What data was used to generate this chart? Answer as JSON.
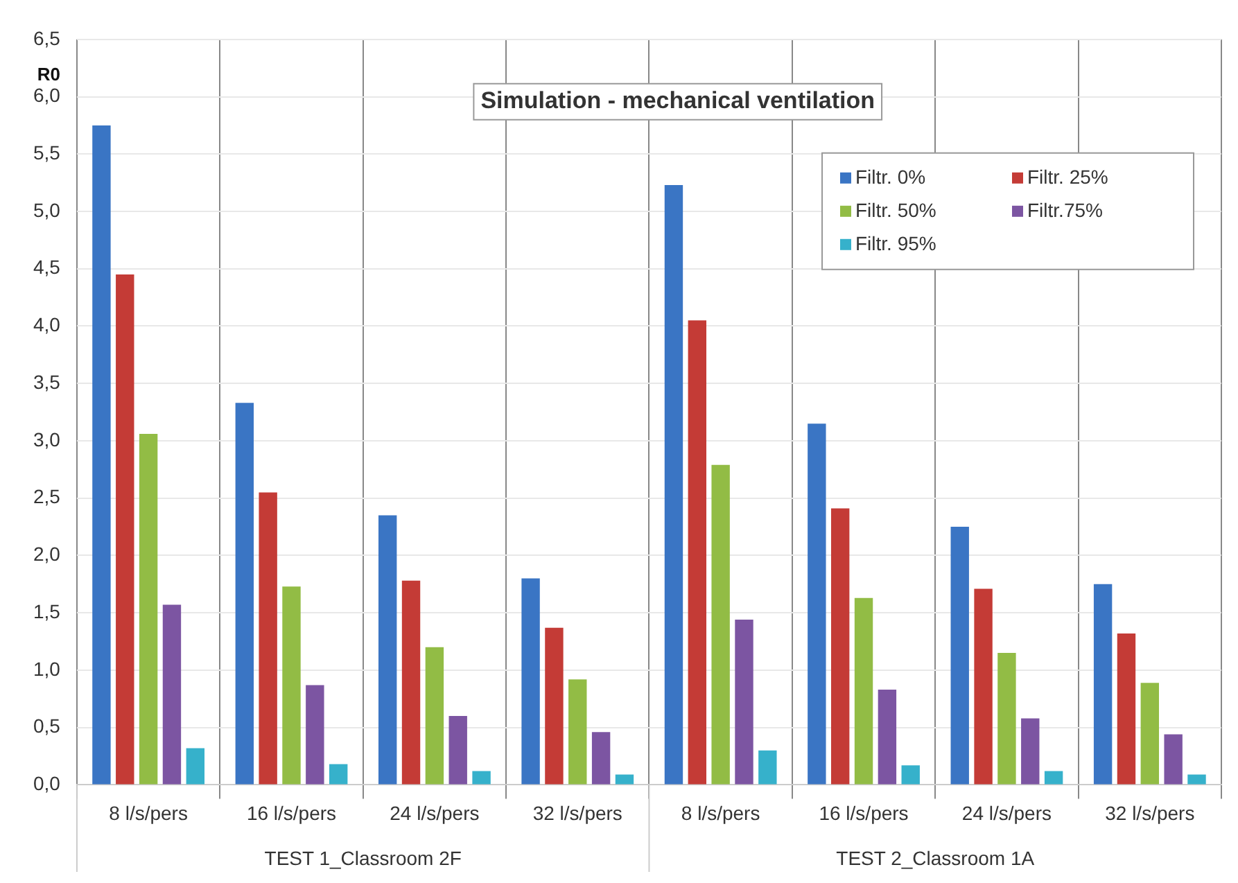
{
  "chart_data": {
    "type": "bar",
    "title": "Simulation - mechanical ventilation",
    "ylabel": "R0",
    "categories": [
      "8 l/s/pers",
      "16 l/s/pers",
      "24 l/s/pers",
      "32 l/s/pers",
      "8 l/s/pers",
      "16 l/s/pers",
      "24 l/s/pers",
      "32 l/s/pers"
    ],
    "series": [
      {
        "name": "Filtr. 0%",
        "color": "#3a75c4",
        "values": [
          5.75,
          3.33,
          2.35,
          1.8,
          5.23,
          3.15,
          2.25,
          1.75
        ]
      },
      {
        "name": "Filtr. 25%",
        "color": "#c43b36",
        "values": [
          4.45,
          2.55,
          1.78,
          1.37,
          4.05,
          2.41,
          1.71,
          1.32
        ]
      },
      {
        "name": "Filtr. 50%",
        "color": "#92bc45",
        "values": [
          3.06,
          1.73,
          1.2,
          0.92,
          2.79,
          1.63,
          1.15,
          0.89
        ]
      },
      {
        "name": "Filtr.75%",
        "color": "#7c55a2",
        "values": [
          1.57,
          0.87,
          0.6,
          0.46,
          1.44,
          0.83,
          0.58,
          0.44
        ]
      },
      {
        "name": "Filtr. 95%",
        "color": "#36b1cb",
        "values": [
          0.32,
          0.18,
          0.12,
          0.09,
          0.3,
          0.17,
          0.12,
          0.09
        ]
      }
    ],
    "ylim": [
      0,
      6.5
    ],
    "yticks": [
      {
        "value": 0,
        "label": "0,0"
      },
      {
        "value": 0.5,
        "label": "0,5"
      },
      {
        "value": 1,
        "label": "1,0"
      },
      {
        "value": 1.5,
        "label": "1,5"
      },
      {
        "value": 2,
        "label": "2,0"
      },
      {
        "value": 2.5,
        "label": "2,5"
      },
      {
        "value": 3,
        "label": "3,0"
      },
      {
        "value": 3.5,
        "label": "3,5"
      },
      {
        "value": 4,
        "label": "4,0"
      },
      {
        "value": 4.5,
        "label": "4,5"
      },
      {
        "value": 5,
        "label": "5,0"
      },
      {
        "value": 5.5,
        "label": "5,5"
      },
      {
        "value": 6,
        "label": "6,0"
      },
      {
        "value": 6.5,
        "label": "6,5"
      }
    ],
    "annotations": [
      "TEST 1_Classroom 2F",
      "TEST 2_Classroom 1A"
    ],
    "grid": true,
    "legend": "top right"
  }
}
